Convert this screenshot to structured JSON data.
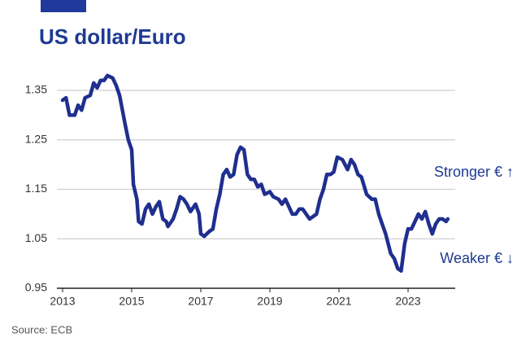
{
  "chart_data": {
    "type": "line",
    "title": "US dollar/Euro",
    "source": "Source: ECB",
    "annotations": [
      "Stronger € ↑",
      "Weaker € ↓"
    ],
    "color": "#1f2f8f",
    "grid": true,
    "xlim": [
      2013,
      2024.2
    ],
    "xticks": [
      2013,
      2015,
      2017,
      2019,
      2021,
      2023
    ],
    "ylim": [
      0.95,
      1.4
    ],
    "yticks": [
      0.95,
      1.05,
      1.15,
      1.25,
      1.35
    ],
    "x": [
      2013.0,
      2013.1,
      2013.2,
      2013.35,
      2013.45,
      2013.55,
      2013.65,
      2013.8,
      2013.9,
      2014.0,
      2014.1,
      2014.2,
      2014.3,
      2014.45,
      2014.55,
      2014.65,
      2014.8,
      2014.9,
      2015.0,
      2015.05,
      2015.15,
      2015.2,
      2015.3,
      2015.4,
      2015.5,
      2015.6,
      2015.7,
      2015.8,
      2015.9,
      2016.0,
      2016.05,
      2016.2,
      2016.3,
      2016.4,
      2016.5,
      2016.6,
      2016.7,
      2016.85,
      2016.95,
      2017.0,
      2017.1,
      2017.25,
      2017.35,
      2017.45,
      2017.55,
      2017.65,
      2017.75,
      2017.85,
      2017.95,
      2018.05,
      2018.15,
      2018.25,
      2018.35,
      2018.45,
      2018.55,
      2018.65,
      2018.75,
      2018.85,
      2019.0,
      2019.1,
      2019.25,
      2019.35,
      2019.45,
      2019.55,
      2019.65,
      2019.75,
      2019.85,
      2019.95,
      2020.05,
      2020.15,
      2020.25,
      2020.35,
      2020.45,
      2020.55,
      2020.65,
      2020.75,
      2020.85,
      2020.95,
      2021.1,
      2021.25,
      2021.35,
      2021.45,
      2021.55,
      2021.65,
      2021.8,
      2021.95,
      2022.05,
      2022.15,
      2022.25,
      2022.35,
      2022.5,
      2022.6,
      2022.7,
      2022.8,
      2022.9,
      2023.0,
      2023.1,
      2023.2,
      2023.3,
      2023.4,
      2023.5,
      2023.6,
      2023.7,
      2023.8,
      2023.9,
      2024.0,
      2024.1,
      2024.15
    ],
    "values": [
      1.33,
      1.335,
      1.3,
      1.3,
      1.32,
      1.31,
      1.335,
      1.34,
      1.365,
      1.355,
      1.37,
      1.37,
      1.38,
      1.375,
      1.36,
      1.34,
      1.285,
      1.25,
      1.23,
      1.16,
      1.13,
      1.085,
      1.08,
      1.11,
      1.12,
      1.1,
      1.115,
      1.125,
      1.09,
      1.085,
      1.075,
      1.09,
      1.11,
      1.135,
      1.13,
      1.12,
      1.105,
      1.12,
      1.1,
      1.06,
      1.055,
      1.065,
      1.07,
      1.11,
      1.14,
      1.18,
      1.19,
      1.175,
      1.18,
      1.22,
      1.235,
      1.23,
      1.18,
      1.17,
      1.17,
      1.155,
      1.16,
      1.14,
      1.145,
      1.135,
      1.13,
      1.12,
      1.13,
      1.115,
      1.1,
      1.1,
      1.11,
      1.11,
      1.1,
      1.09,
      1.095,
      1.1,
      1.13,
      1.15,
      1.18,
      1.18,
      1.185,
      1.215,
      1.21,
      1.19,
      1.21,
      1.2,
      1.18,
      1.175,
      1.14,
      1.13,
      1.13,
      1.1,
      1.08,
      1.06,
      1.02,
      1.01,
      0.99,
      0.985,
      1.04,
      1.07,
      1.07,
      1.085,
      1.1,
      1.09,
      1.105,
      1.08,
      1.06,
      1.08,
      1.09,
      1.09,
      1.085,
      1.09
    ]
  }
}
